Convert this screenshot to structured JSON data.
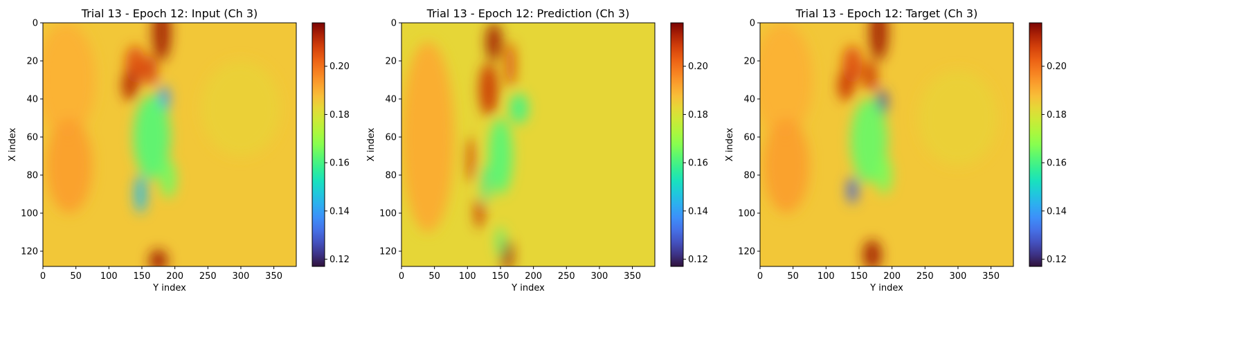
{
  "chart_data": [
    {
      "type": "heatmap",
      "title": "Trial 13 - Epoch 12: Input (Ch 3)",
      "xlabel": "Y index",
      "ylabel": "X index",
      "xlim": [
        0,
        384
      ],
      "ylim": [
        128,
        0
      ],
      "xticks": [
        "0",
        "50",
        "100",
        "150",
        "200",
        "250",
        "300",
        "350"
      ],
      "yticks": [
        "0",
        "20",
        "40",
        "60",
        "80",
        "100",
        "120"
      ],
      "colormap": "turbo",
      "colorbar": {
        "range": [
          0.117,
          0.218
        ],
        "ticks": [
          "0.12",
          "0.14",
          "0.16",
          "0.18",
          "0.20"
        ]
      },
      "background_value": 0.186,
      "features": [
        {
          "x": 180,
          "y": 5,
          "sx": 14,
          "sy": 15,
          "v": 0.214
        },
        {
          "x": 140,
          "y": 22,
          "sx": 15,
          "sy": 10,
          "v": 0.206
        },
        {
          "x": 132,
          "y": 33,
          "sx": 12,
          "sy": 8,
          "v": 0.212
        },
        {
          "x": 163,
          "y": 25,
          "sx": 10,
          "sy": 8,
          "v": 0.208
        },
        {
          "x": 184,
          "y": 40,
          "sx": 8,
          "sy": 7,
          "v": 0.138
        },
        {
          "x": 165,
          "y": 60,
          "sx": 28,
          "sy": 22,
          "v": 0.162
        },
        {
          "x": 148,
          "y": 90,
          "sx": 9,
          "sy": 10,
          "v": 0.145
        },
        {
          "x": 190,
          "y": 82,
          "sx": 12,
          "sy": 10,
          "v": 0.165
        },
        {
          "x": 175,
          "y": 125,
          "sx": 14,
          "sy": 6,
          "v": 0.214
        },
        {
          "x": 35,
          "y": 30,
          "sx": 45,
          "sy": 30,
          "v": 0.19
        },
        {
          "x": 40,
          "y": 75,
          "sx": 35,
          "sy": 25,
          "v": 0.193
        },
        {
          "x": 300,
          "y": 45,
          "sx": 60,
          "sy": 25,
          "v": 0.184
        }
      ]
    },
    {
      "type": "heatmap",
      "title": "Trial 13 - Epoch 12: Prediction (Ch 3)",
      "xlabel": "Y index",
      "ylabel": "X index",
      "xlim": [
        0,
        384
      ],
      "ylim": [
        128,
        0
      ],
      "xticks": [
        "0",
        "50",
        "100",
        "150",
        "200",
        "250",
        "300",
        "350"
      ],
      "yticks": [
        "0",
        "20",
        "40",
        "60",
        "80",
        "100",
        "120"
      ],
      "colormap": "turbo",
      "colorbar": {
        "range": [
          0.117,
          0.218
        ],
        "ticks": [
          "0.12",
          "0.14",
          "0.16",
          "0.18",
          "0.20"
        ]
      },
      "background_value": 0.183,
      "features": [
        {
          "x": 140,
          "y": 10,
          "sx": 12,
          "sy": 10,
          "v": 0.214
        },
        {
          "x": 132,
          "y": 35,
          "sx": 14,
          "sy": 14,
          "v": 0.21
        },
        {
          "x": 165,
          "y": 22,
          "sx": 8,
          "sy": 12,
          "v": 0.206
        },
        {
          "x": 105,
          "y": 72,
          "sx": 6,
          "sy": 12,
          "v": 0.208
        },
        {
          "x": 118,
          "y": 100,
          "sx": 7,
          "sy": 8,
          "v": 0.21
        },
        {
          "x": 160,
          "y": 122,
          "sx": 9,
          "sy": 8,
          "v": 0.214
        },
        {
          "x": 178,
          "y": 45,
          "sx": 14,
          "sy": 8,
          "v": 0.16
        },
        {
          "x": 150,
          "y": 70,
          "sx": 18,
          "sy": 20,
          "v": 0.162
        },
        {
          "x": 128,
          "y": 85,
          "sx": 6,
          "sy": 10,
          "v": 0.158
        },
        {
          "x": 150,
          "y": 115,
          "sx": 6,
          "sy": 8,
          "v": 0.162
        },
        {
          "x": 40,
          "y": 60,
          "sx": 40,
          "sy": 50,
          "v": 0.191
        }
      ]
    },
    {
      "type": "heatmap",
      "title": "Trial 13 - Epoch 12: Target (Ch 3)",
      "xlabel": "Y index",
      "ylabel": "X index",
      "xlim": [
        0,
        384
      ],
      "ylim": [
        128,
        0
      ],
      "xticks": [
        "0",
        "50",
        "100",
        "150",
        "200",
        "250",
        "300",
        "350"
      ],
      "yticks": [
        "0",
        "20",
        "40",
        "60",
        "80",
        "100",
        "120"
      ],
      "colormap": "turbo",
      "colorbar": {
        "range": [
          0.117,
          0.218
        ],
        "ticks": [
          "0.12",
          "0.14",
          "0.16",
          "0.18",
          "0.20"
        ]
      },
      "background_value": 0.186,
      "features": [
        {
          "x": 180,
          "y": 5,
          "sx": 14,
          "sy": 15,
          "v": 0.214
        },
        {
          "x": 140,
          "y": 22,
          "sx": 15,
          "sy": 10,
          "v": 0.206
        },
        {
          "x": 130,
          "y": 33,
          "sx": 12,
          "sy": 8,
          "v": 0.21
        },
        {
          "x": 167,
          "y": 28,
          "sx": 10,
          "sy": 8,
          "v": 0.21
        },
        {
          "x": 185,
          "y": 42,
          "sx": 8,
          "sy": 7,
          "v": 0.125
        },
        {
          "x": 165,
          "y": 62,
          "sx": 28,
          "sy": 22,
          "v": 0.164
        },
        {
          "x": 140,
          "y": 88,
          "sx": 8,
          "sy": 7,
          "v": 0.13
        },
        {
          "x": 188,
          "y": 80,
          "sx": 12,
          "sy": 10,
          "v": 0.166
        },
        {
          "x": 170,
          "y": 122,
          "sx": 14,
          "sy": 8,
          "v": 0.214
        },
        {
          "x": 35,
          "y": 30,
          "sx": 45,
          "sy": 30,
          "v": 0.19
        },
        {
          "x": 40,
          "y": 75,
          "sx": 35,
          "sy": 25,
          "v": 0.193
        },
        {
          "x": 300,
          "y": 50,
          "sx": 60,
          "sy": 25,
          "v": 0.184
        }
      ]
    }
  ]
}
